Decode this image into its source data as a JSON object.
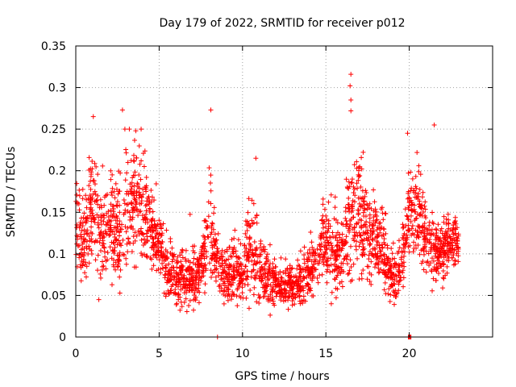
{
  "chart_data": {
    "type": "scatter",
    "title": "Day 179 of 2022, SRMTID for receiver p012",
    "xlabel": "GPS time / hours",
    "ylabel": "SRMTID / TECUs",
    "xlim": [
      0,
      25
    ],
    "ylim": [
      0,
      0.35
    ],
    "x_ticks": [
      "0",
      "5",
      "10",
      "15",
      "20"
    ],
    "y_ticks": [
      "0",
      "0.05",
      "0.1",
      "0.15",
      "0.2",
      "0.25",
      "0.3",
      "0.35"
    ],
    "x_tick_values": [
      0,
      5,
      10,
      15,
      20
    ],
    "y_tick_values": [
      0,
      0.05,
      0.1,
      0.15,
      0.2,
      0.25,
      0.3,
      0.35
    ],
    "grid": true,
    "marker": "+",
    "color": "#ff0000",
    "series": [
      {
        "name": "SRMTID",
        "profile_x": [
          0,
          0.3,
          0.6,
          1.0,
          1.5,
          2.0,
          2.5,
          3.0,
          3.5,
          4.0,
          4.5,
          5.0,
          5.5,
          6.0,
          6.5,
          7.0,
          7.5,
          8.0,
          8.5,
          9.0,
          9.5,
          10.0,
          10.5,
          11.0,
          11.5,
          12.0,
          12.5,
          13.0,
          13.5,
          14.0,
          14.5,
          15.0,
          15.5,
          16.0,
          16.5,
          17.0,
          17.5,
          18.0,
          18.5,
          19.0,
          19.5,
          20.0,
          20.5,
          21.0,
          21.5,
          22.0,
          22.5,
          23.0
        ],
        "profile_mean": [
          0.14,
          0.12,
          0.12,
          0.16,
          0.12,
          0.14,
          0.12,
          0.13,
          0.16,
          0.15,
          0.13,
          0.11,
          0.08,
          0.07,
          0.07,
          0.07,
          0.08,
          0.13,
          0.09,
          0.07,
          0.08,
          0.07,
          0.12,
          0.08,
          0.07,
          0.065,
          0.06,
          0.06,
          0.065,
          0.08,
          0.09,
          0.12,
          0.1,
          0.09,
          0.15,
          0.16,
          0.12,
          0.11,
          0.1,
          0.07,
          0.08,
          0.14,
          0.15,
          0.12,
          0.1,
          0.1,
          0.11,
          0.11
        ],
        "profile_spread": [
          0.05,
          0.05,
          0.04,
          0.06,
          0.05,
          0.05,
          0.05,
          0.06,
          0.06,
          0.05,
          0.04,
          0.03,
          0.03,
          0.03,
          0.03,
          0.03,
          0.03,
          0.05,
          0.03,
          0.03,
          0.03,
          0.03,
          0.05,
          0.03,
          0.03,
          0.02,
          0.02,
          0.02,
          0.025,
          0.03,
          0.03,
          0.05,
          0.04,
          0.04,
          0.06,
          0.06,
          0.05,
          0.04,
          0.04,
          0.03,
          0.03,
          0.05,
          0.05,
          0.04,
          0.03,
          0.03,
          0.03,
          0.03
        ],
        "n_points": 2600,
        "peaks": [
          {
            "x": 1.05,
            "y": 0.265
          },
          {
            "x": 2.8,
            "y": 0.273
          },
          {
            "x": 3.6,
            "y": 0.248
          },
          {
            "x": 8.1,
            "y": 0.273
          },
          {
            "x": 10.8,
            "y": 0.215
          },
          {
            "x": 16.5,
            "y": 0.316
          },
          {
            "x": 16.45,
            "y": 0.302
          },
          {
            "x": 16.5,
            "y": 0.285
          },
          {
            "x": 16.5,
            "y": 0.272
          },
          {
            "x": 19.9,
            "y": 0.245
          },
          {
            "x": 21.5,
            "y": 0.255
          }
        ],
        "zeros": [
          8.5,
          19.95,
          20.0,
          20.05,
          20.1
        ]
      }
    ]
  }
}
